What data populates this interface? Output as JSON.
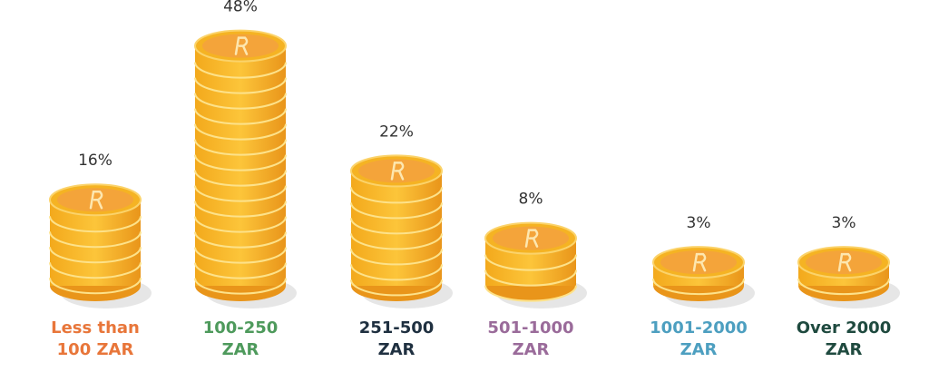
{
  "chart_data": {
    "type": "coin-bar",
    "categories": [
      "Less than 100 ZAR",
      "100-250 ZAR",
      "251-500 ZAR",
      "501-1000 ZAR",
      "1001-2000 ZAR",
      "Over 2000 ZAR"
    ],
    "values": [
      16,
      48,
      22,
      8,
      3,
      3
    ],
    "value_labels": [
      "16%",
      "48%",
      "22%",
      "8%",
      "3%",
      "3%"
    ],
    "label_colors": [
      "#e8763a",
      "#4e9a5c",
      "#1f3040",
      "#9a6b9a",
      "#4d9fc0",
      "#1f4a3f"
    ],
    "color": "#f5b323"
  }
}
